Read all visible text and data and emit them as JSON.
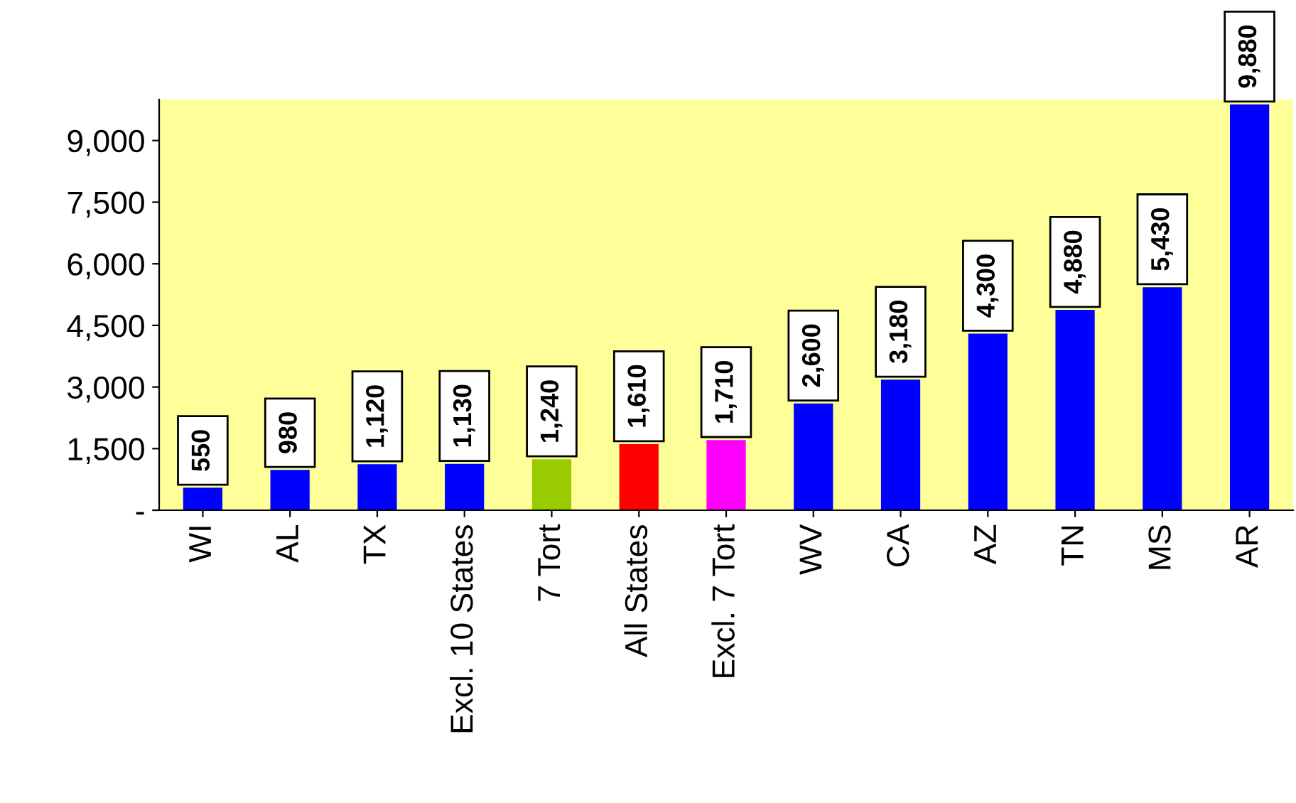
{
  "chart_data": {
    "type": "bar",
    "categories": [
      "WI",
      "AL",
      "TX",
      "Excl. 10 States",
      "7 Tort",
      "All States",
      "Excl. 7 Tort",
      "WV",
      "CA",
      "AZ",
      "TN",
      "MS",
      "AR"
    ],
    "values": [
      550,
      980,
      1120,
      1130,
      1240,
      1610,
      1710,
      2600,
      3180,
      4300,
      4880,
      5430,
      9880
    ],
    "colors": [
      "#0000ff",
      "#0000ff",
      "#0000ff",
      "#0000ff",
      "#99cc00",
      "#ff0000",
      "#ff00ff",
      "#0000ff",
      "#0000ff",
      "#0000ff",
      "#0000ff",
      "#0000ff",
      "#0000ff"
    ],
    "value_labels": [
      "550",
      "980",
      "1,120",
      "1,130",
      "1,240",
      "1,610",
      "1,710",
      "2,600",
      "3,180",
      "4,300",
      "4,880",
      "5,430",
      "9,880"
    ],
    "ylim": [
      0,
      10000
    ],
    "yticks": [
      {
        "value": 0,
        "label": "-"
      },
      {
        "value": 1500,
        "label": "1,500"
      },
      {
        "value": 3000,
        "label": "3,000"
      },
      {
        "value": 4500,
        "label": "4,500"
      },
      {
        "value": 6000,
        "label": "6,000"
      },
      {
        "value": 7500,
        "label": "7,500"
      },
      {
        "value": 9000,
        "label": "9,000"
      }
    ],
    "grid": false,
    "legend": false
  }
}
